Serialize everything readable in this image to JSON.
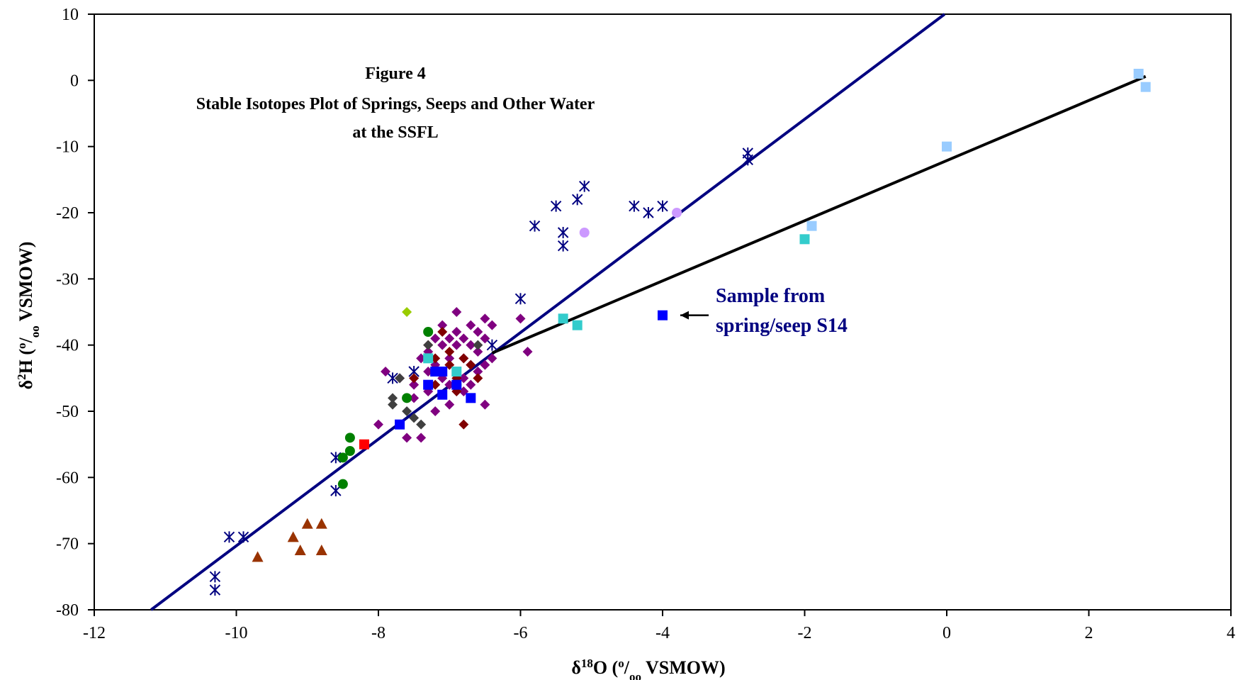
{
  "chart_data": {
    "type": "scatter",
    "title_lines": [
      "Figure 4",
      "Stable Isotopes Plot of Springs, Seeps and Other Water",
      "at the SSFL"
    ],
    "xlabel": {
      "base": "δ",
      "sup": "18",
      "rest": "O (",
      "sup2": "o",
      "sub": "/",
      "sub2": "oo",
      "tail": " VSMOW)"
    },
    "ylabel": {
      "base": "δ",
      "sup": "2",
      "rest": "H (",
      "sup2": "o",
      "sub": "/",
      "sub2": "oo",
      "tail": " VSMOW)"
    },
    "xlim": [
      -12,
      4
    ],
    "ylim": [
      -80,
      10
    ],
    "x_ticks": [
      -12,
      -10,
      -8,
      -6,
      -4,
      -2,
      0,
      2,
      4
    ],
    "y_ticks": [
      10,
      0,
      -10,
      -20,
      -30,
      -40,
      -50,
      -60,
      -70,
      -80
    ],
    "grid": false,
    "annotation": {
      "lines": [
        "Sample from",
        "spring/seep S14"
      ],
      "target": [
        -4.0,
        -35.5
      ]
    },
    "lines": [
      {
        "color": "#000080",
        "x": [
          -11.2,
          -0.03
        ],
        "y": [
          -80,
          10
        ]
      },
      {
        "color": "#000000",
        "x": [
          -6.4,
          2.8
        ],
        "y": [
          -41.2,
          0.6
        ]
      }
    ],
    "series": [
      {
        "marker": "star",
        "color": "#000080",
        "points": [
          [
            -10.3,
            -75
          ],
          [
            -10.3,
            -77
          ],
          [
            -10.1,
            -69
          ],
          [
            -9.9,
            -69
          ],
          [
            -8.6,
            -57
          ],
          [
            -8.6,
            -62
          ],
          [
            -7.8,
            -45
          ],
          [
            -7.5,
            -44
          ],
          [
            -6.4,
            -40
          ],
          [
            -6.0,
            -33
          ],
          [
            -5.8,
            -22
          ],
          [
            -5.5,
            -19
          ],
          [
            -5.4,
            -23
          ],
          [
            -5.4,
            -25
          ],
          [
            -5.2,
            -18
          ],
          [
            -5.1,
            -16
          ],
          [
            -4.4,
            -19
          ],
          [
            -4.2,
            -20
          ],
          [
            -4.0,
            -19
          ],
          [
            -2.8,
            -11
          ],
          [
            -2.8,
            -12
          ]
        ]
      },
      {
        "marker": "diamond",
        "color": "#800080",
        "points": [
          [
            -8.0,
            -52
          ],
          [
            -7.9,
            -44
          ],
          [
            -7.7,
            -45
          ],
          [
            -7.6,
            -54
          ],
          [
            -7.5,
            -46
          ],
          [
            -7.5,
            -48
          ],
          [
            -7.4,
            -54
          ],
          [
            -7.4,
            -42
          ],
          [
            -7.3,
            -41
          ],
          [
            -7.3,
            -44
          ],
          [
            -7.3,
            -47
          ],
          [
            -7.2,
            -39
          ],
          [
            -7.2,
            -43
          ],
          [
            -7.2,
            -50
          ],
          [
            -7.1,
            -37
          ],
          [
            -7.1,
            -40
          ],
          [
            -7.1,
            -45
          ],
          [
            -7.0,
            -39
          ],
          [
            -7.0,
            -42
          ],
          [
            -7.0,
            -46
          ],
          [
            -7.0,
            -49
          ],
          [
            -6.9,
            -35
          ],
          [
            -6.9,
            -38
          ],
          [
            -6.9,
            -40
          ],
          [
            -6.9,
            -44
          ],
          [
            -6.8,
            -39
          ],
          [
            -6.8,
            -42
          ],
          [
            -6.8,
            -45
          ],
          [
            -6.8,
            -47
          ],
          [
            -6.7,
            -37
          ],
          [
            -6.7,
            -40
          ],
          [
            -6.7,
            -43
          ],
          [
            -6.7,
            -46
          ],
          [
            -6.6,
            -38
          ],
          [
            -6.6,
            -41
          ],
          [
            -6.6,
            -44
          ],
          [
            -6.5,
            -36
          ],
          [
            -6.5,
            -39
          ],
          [
            -6.5,
            -43
          ],
          [
            -6.5,
            -49
          ],
          [
            -6.4,
            -37
          ],
          [
            -6.4,
            -42
          ],
          [
            -6.0,
            -36
          ],
          [
            -5.9,
            -41
          ]
        ]
      },
      {
        "marker": "diamond",
        "color": "#800000",
        "points": [
          [
            -7.5,
            -45
          ],
          [
            -7.3,
            -40
          ],
          [
            -7.2,
            -42
          ],
          [
            -7.2,
            -46
          ],
          [
            -7.1,
            -38
          ],
          [
            -7.1,
            -44
          ],
          [
            -7.0,
            -41
          ],
          [
            -7.0,
            -43
          ],
          [
            -6.9,
            -45
          ],
          [
            -6.9,
            -47
          ],
          [
            -6.8,
            -42
          ],
          [
            -6.8,
            -52
          ],
          [
            -6.7,
            -43
          ],
          [
            -6.6,
            -45
          ]
        ]
      },
      {
        "marker": "diamond",
        "color": "#404040",
        "points": [
          [
            -7.8,
            -48
          ],
          [
            -7.8,
            -49
          ],
          [
            -7.7,
            -45
          ],
          [
            -7.6,
            -50
          ],
          [
            -7.5,
            -51
          ],
          [
            -7.4,
            -52
          ],
          [
            -7.3,
            -40
          ],
          [
            -6.6,
            -40
          ]
        ]
      },
      {
        "marker": "diamond",
        "color": "#99CC00",
        "points": [
          [
            -7.6,
            -35
          ]
        ]
      },
      {
        "marker": "circle",
        "color": "#008000",
        "points": [
          [
            -8.5,
            -57
          ],
          [
            -8.5,
            -61
          ],
          [
            -8.4,
            -54
          ],
          [
            -8.4,
            -56
          ],
          [
            -7.6,
            -48
          ],
          [
            -7.3,
            -38
          ],
          [
            -6.9,
            -46
          ]
        ]
      },
      {
        "marker": "circle",
        "color": "#CC99FF",
        "points": [
          [
            -5.1,
            -23
          ],
          [
            -3.8,
            -20
          ]
        ]
      },
      {
        "marker": "triangle",
        "color": "#993300",
        "points": [
          [
            -9.7,
            -72
          ],
          [
            -9.2,
            -69
          ],
          [
            -9.1,
            -71
          ],
          [
            -9.0,
            -67
          ],
          [
            -8.8,
            -67
          ],
          [
            -8.8,
            -71
          ]
        ]
      },
      {
        "marker": "square",
        "color": "#0000FF",
        "points": [
          [
            -7.7,
            -52
          ],
          [
            -7.3,
            -46
          ],
          [
            -7.2,
            -44
          ],
          [
            -7.1,
            -44
          ],
          [
            -7.1,
            -47.5
          ],
          [
            -6.9,
            -46
          ],
          [
            -6.7,
            -48
          ],
          [
            -4.0,
            -35.5
          ]
        ]
      },
      {
        "marker": "square",
        "color": "#33CCCC",
        "points": [
          [
            -7.3,
            -42
          ],
          [
            -6.9,
            -44
          ],
          [
            -5.4,
            -36
          ],
          [
            -5.2,
            -37
          ],
          [
            -2.0,
            -24
          ]
        ]
      },
      {
        "marker": "square",
        "color": "#99CCFF",
        "points": [
          [
            -1.9,
            -22
          ],
          [
            0,
            -10
          ],
          [
            2.7,
            1
          ],
          [
            2.8,
            -1
          ]
        ]
      },
      {
        "marker": "square",
        "color": "#FF0000",
        "points": [
          [
            -8.2,
            -55
          ]
        ]
      }
    ]
  }
}
